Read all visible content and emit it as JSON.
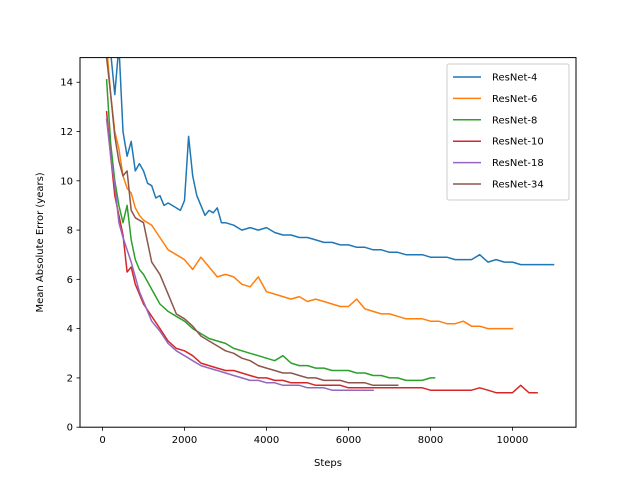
{
  "chart_data": {
    "type": "line",
    "title": "",
    "xlabel": "Steps",
    "ylabel": "Mean Absolute Error (years)",
    "xlim": [
      -550,
      11550
    ],
    "ylim": [
      0,
      15
    ],
    "xticks": [
      0,
      2000,
      4000,
      6000,
      8000,
      10000
    ],
    "yticks": [
      0,
      2,
      4,
      6,
      8,
      10,
      12,
      14
    ],
    "grid": false,
    "legend_position": "top-right",
    "series": [
      {
        "name": "ResNet-4",
        "color": "#1f77b4",
        "x": [
          100,
          200,
          300,
          400,
          500,
          600,
          700,
          800,
          900,
          1000,
          1100,
          1200,
          1300,
          1400,
          1500,
          1600,
          1700,
          1800,
          1900,
          2000,
          2100,
          2200,
          2300,
          2400,
          2500,
          2600,
          2700,
          2800,
          2900,
          3000,
          3200,
          3400,
          3600,
          3800,
          4000,
          4200,
          4400,
          4600,
          4800,
          5000,
          5200,
          5400,
          5600,
          5800,
          6000,
          6200,
          6400,
          6600,
          6800,
          7000,
          7200,
          7400,
          7600,
          7800,
          8000,
          8200,
          8400,
          8600,
          8800,
          9000,
          9200,
          9400,
          9600,
          9800,
          10000,
          10200,
          10400,
          10600,
          10800,
          11000
        ],
        "y": [
          15.5,
          15.2,
          13.5,
          15.5,
          12.0,
          11.0,
          11.6,
          10.4,
          10.7,
          10.4,
          9.9,
          9.8,
          9.3,
          9.4,
          9.0,
          9.1,
          9.0,
          8.9,
          8.8,
          9.2,
          11.8,
          10.2,
          9.4,
          9.0,
          8.6,
          8.8,
          8.7,
          8.9,
          8.3,
          8.3,
          8.2,
          8.0,
          8.1,
          8.0,
          8.1,
          7.9,
          7.8,
          7.8,
          7.7,
          7.7,
          7.6,
          7.5,
          7.5,
          7.4,
          7.4,
          7.3,
          7.3,
          7.2,
          7.2,
          7.1,
          7.1,
          7.0,
          7.0,
          7.0,
          6.9,
          6.9,
          6.9,
          6.8,
          6.8,
          6.8,
          7.0,
          6.7,
          6.8,
          6.7,
          6.7,
          6.6,
          6.6,
          6.6,
          6.6,
          6.6
        ]
      },
      {
        "name": "ResNet-6",
        "color": "#ff7f0e",
        "x": [
          100,
          200,
          300,
          400,
          500,
          600,
          700,
          800,
          900,
          1000,
          1200,
          1400,
          1600,
          1800,
          2000,
          2200,
          2400,
          2600,
          2800,
          3000,
          3200,
          3400,
          3600,
          3800,
          4000,
          4200,
          4400,
          4600,
          4800,
          5000,
          5200,
          5400,
          5600,
          5800,
          6000,
          6200,
          6400,
          6600,
          6800,
          7000,
          7200,
          7400,
          7600,
          7800,
          8000,
          8200,
          8400,
          8600,
          8800,
          9000,
          9200,
          9400,
          9600,
          9800,
          10000
        ],
        "y": [
          15.5,
          13.5,
          12.0,
          11.3,
          10.2,
          9.7,
          9.5,
          8.9,
          8.6,
          8.4,
          8.2,
          7.7,
          7.2,
          7.0,
          6.8,
          6.4,
          6.9,
          6.5,
          6.1,
          6.2,
          6.1,
          5.8,
          5.7,
          6.1,
          5.5,
          5.4,
          5.3,
          5.2,
          5.3,
          5.1,
          5.2,
          5.1,
          5.0,
          4.9,
          4.9,
          5.2,
          4.8,
          4.7,
          4.6,
          4.6,
          4.5,
          4.4,
          4.4,
          4.4,
          4.3,
          4.3,
          4.2,
          4.2,
          4.3,
          4.1,
          4.1,
          4.0,
          4.0,
          4.0,
          4.0
        ]
      },
      {
        "name": "ResNet-8",
        "color": "#2ca02c",
        "x": [
          100,
          200,
          300,
          400,
          500,
          600,
          700,
          800,
          900,
          1000,
          1200,
          1400,
          1600,
          1800,
          2000,
          2200,
          2400,
          2600,
          2800,
          3000,
          3200,
          3400,
          3600,
          3800,
          4000,
          4200,
          4400,
          4600,
          4800,
          5000,
          5200,
          5400,
          5600,
          5800,
          6000,
          6200,
          6400,
          6600,
          6800,
          7000,
          7200,
          7400,
          7600,
          7800,
          8000,
          8100
        ],
        "y": [
          14.1,
          11.5,
          10.0,
          9.0,
          8.3,
          9.0,
          7.6,
          6.8,
          6.4,
          6.2,
          5.6,
          5.0,
          4.7,
          4.5,
          4.3,
          4.0,
          3.8,
          3.6,
          3.5,
          3.4,
          3.2,
          3.1,
          3.0,
          2.9,
          2.8,
          2.7,
          2.9,
          2.6,
          2.5,
          2.5,
          2.4,
          2.4,
          2.3,
          2.3,
          2.3,
          2.2,
          2.2,
          2.1,
          2.1,
          2.0,
          2.0,
          1.9,
          1.9,
          1.9,
          2.0,
          2.0
        ]
      },
      {
        "name": "ResNet-10",
        "color": "#d62728",
        "x": [
          100,
          200,
          300,
          400,
          500,
          600,
          700,
          800,
          900,
          1000,
          1200,
          1400,
          1600,
          1800,
          2000,
          2200,
          2400,
          2600,
          2800,
          3000,
          3200,
          3400,
          3600,
          3800,
          4000,
          4200,
          4400,
          4600,
          4800,
          5000,
          5200,
          5400,
          5600,
          5800,
          6000,
          6200,
          6400,
          6600,
          6800,
          7000,
          7200,
          7400,
          7600,
          7800,
          8000,
          8200,
          8400,
          8600,
          8800,
          9000,
          9200,
          9400,
          9600,
          9800,
          10000,
          10200,
          10400,
          10600
        ],
        "y": [
          12.8,
          11.0,
          9.4,
          8.6,
          7.8,
          6.3,
          6.5,
          5.8,
          5.4,
          5.0,
          4.5,
          4.0,
          3.5,
          3.2,
          3.1,
          2.9,
          2.6,
          2.5,
          2.4,
          2.3,
          2.3,
          2.2,
          2.1,
          2.0,
          2.0,
          1.9,
          1.9,
          1.8,
          1.8,
          1.8,
          1.7,
          1.7,
          1.7,
          1.7,
          1.6,
          1.6,
          1.6,
          1.6,
          1.6,
          1.6,
          1.6,
          1.6,
          1.6,
          1.6,
          1.5,
          1.5,
          1.5,
          1.5,
          1.5,
          1.5,
          1.6,
          1.5,
          1.4,
          1.4,
          1.4,
          1.7,
          1.4,
          1.4
        ]
      },
      {
        "name": "ResNet-18",
        "color": "#9467bd",
        "x": [
          100,
          200,
          300,
          400,
          500,
          600,
          700,
          800,
          900,
          1000,
          1200,
          1400,
          1600,
          1800,
          2000,
          2200,
          2400,
          2600,
          2800,
          3000,
          3200,
          3400,
          3600,
          3800,
          4000,
          4200,
          4400,
          4600,
          4800,
          5000,
          5200,
          5400,
          5600,
          5800,
          6000,
          6200,
          6400,
          6600
        ],
        "y": [
          12.5,
          11.0,
          9.8,
          8.3,
          7.7,
          7.2,
          6.7,
          6.1,
          5.5,
          5.1,
          4.3,
          3.9,
          3.4,
          3.1,
          2.9,
          2.7,
          2.5,
          2.4,
          2.3,
          2.2,
          2.1,
          2.0,
          1.9,
          1.9,
          1.8,
          1.8,
          1.7,
          1.7,
          1.7,
          1.6,
          1.6,
          1.6,
          1.5,
          1.5,
          1.5,
          1.5,
          1.5,
          1.5
        ]
      },
      {
        "name": "ResNet-34",
        "color": "#8c564b",
        "x": [
          100,
          200,
          300,
          400,
          500,
          600,
          700,
          800,
          900,
          1000,
          1200,
          1400,
          1600,
          1800,
          2000,
          2200,
          2400,
          2600,
          2800,
          3000,
          3200,
          3400,
          3600,
          3800,
          4000,
          4200,
          4400,
          4600,
          4800,
          5000,
          5200,
          5400,
          5600,
          5800,
          6000,
          6200,
          6400,
          6600,
          6800,
          7000,
          7200
        ],
        "y": [
          15.0,
          13.5,
          11.8,
          10.8,
          10.2,
          10.4,
          8.8,
          8.5,
          8.4,
          8.3,
          6.7,
          6.2,
          5.4,
          4.6,
          4.4,
          4.1,
          3.7,
          3.5,
          3.3,
          3.1,
          3.0,
          2.8,
          2.7,
          2.5,
          2.4,
          2.3,
          2.2,
          2.2,
          2.1,
          2.0,
          2.0,
          1.9,
          1.9,
          1.9,
          1.8,
          1.8,
          1.8,
          1.7,
          1.7,
          1.7,
          1.7
        ]
      }
    ]
  }
}
